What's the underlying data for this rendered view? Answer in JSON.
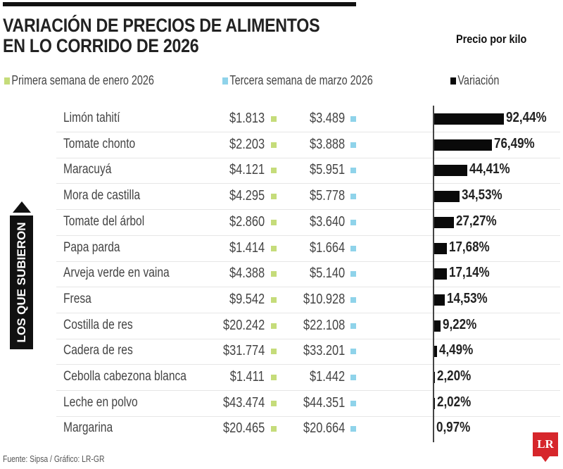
{
  "chart_data": {
    "type": "bar",
    "title": "VARIACIÓN DE PRECIOS DE ALIMENTOS EN LO CORRIDO DE 2026",
    "title_lines": [
      "VARIACIÓN DE PRECIOS DE ALIMENTOS",
      "EN LO CORRIDO DE 2026"
    ],
    "unit_label": "Precio por kilo",
    "legend": [
      {
        "label": "Primera semana de enero 2026",
        "color": "#c5dc7a"
      },
      {
        "label": "Tercera semana de marzo 2026",
        "color": "#8fd3ea"
      },
      {
        "label": "Variación",
        "color": "#0a0a0a"
      }
    ],
    "side_label": "LOS QUE SUBIERON",
    "categories": [
      "Limón tahití",
      "Tomate chonto",
      "Maracuyá",
      "Mora de castilla",
      "Tomate del árbol",
      "Papa parda",
      "Arveja verde en vaina",
      "Fresa",
      "Costilla de res",
      "Cadera de res",
      "Cebolla cabezona blanca",
      "Leche en polvo",
      "Margarina"
    ],
    "price_jan": [
      "$1.813",
      "$2.203",
      "$4.121",
      "$4.295",
      "$2.860",
      "$1.414",
      "$4.388",
      "$9.542",
      "$20.242",
      "$31.774",
      "$1.411",
      "$43.474",
      "$20.465"
    ],
    "price_mar": [
      "$3.489",
      "$3.888",
      "$5.951",
      "$5.778",
      "$3.640",
      "$1.664",
      "$5.140",
      "$10.928",
      "$22.108",
      "$33.201",
      "$1.442",
      "$44.351",
      "$20.664"
    ],
    "variation": [
      92.44,
      76.49,
      44.41,
      34.53,
      27.27,
      17.68,
      17.14,
      14.53,
      9.22,
      4.49,
      2.2,
      2.02,
      0.97
    ],
    "variation_labels": [
      "92,44%",
      "76,49%",
      "44,41%",
      "34,53%",
      "27,27%",
      "17,68%",
      "17,14%",
      "14,53%",
      "9,22%",
      "4,49%",
      "2,20%",
      "2,02%",
      "0,97%"
    ],
    "source": "Fuente: Sipsa / Gráfico: LR-GR",
    "logo": "LR"
  }
}
